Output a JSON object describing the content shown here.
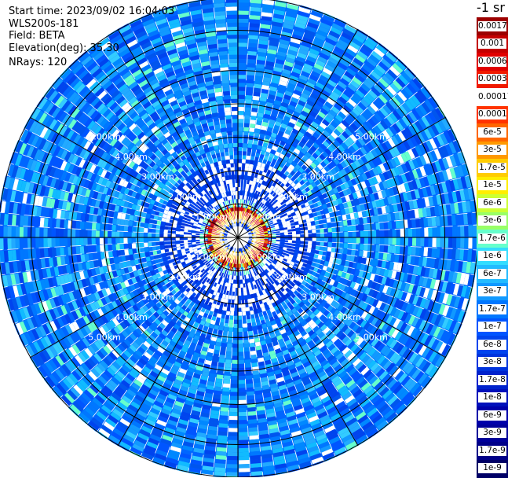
{
  "info": {
    "start_time": "Start time: 2023/09/02 16:04:03",
    "instrument": "WLS200s-181",
    "field": "Field: BETA",
    "elevation": "Elevation(deg): 35.30",
    "nrays": "NRays: 120"
  },
  "colorbar": {
    "unit_label": "-1 sr",
    "labels": [
      "0.0017",
      "0.001",
      "0.0006",
      "0.0003",
      "0.00017",
      "0.0001",
      "6e-5",
      "3e-5",
      "1.7e-5",
      "1e-5",
      "6e-6",
      "3e-6",
      "1.7e-6",
      "1e-6",
      "6e-7",
      "3e-7",
      "1.7e-7",
      "1e-7",
      "6e-8",
      "3e-8",
      "1.7e-8",
      "1e-8",
      "6e-9",
      "3e-9",
      "1.7e-9",
      "1e-9"
    ],
    "colors": [
      "#9c0000",
      "#c40000",
      "#e00000",
      "#f01a00",
      "#ffffff",
      "#ff3300",
      "#ff6600",
      "#ff9900",
      "#ffcc00",
      "#ffee00",
      "#ccff33",
      "#99ff66",
      "#66ffcc",
      "#33ddff",
      "#22bbff",
      "#1199ff",
      "#0077ff",
      "#0055ff",
      "#0044ee",
      "#0033dd",
      "#0022cc",
      "#0011bb",
      "#0000aa",
      "#000099",
      "#000088",
      "#000066"
    ]
  },
  "chart_data": {
    "type": "heatmap",
    "projection": "polar (PPI scan)",
    "field": "BETA",
    "n_rays": 120,
    "elevation_deg": 35.3,
    "range_ring_labels": [
      "1.00km",
      "2.00km",
      "3.00km",
      "4.00km",
      "5.00km"
    ],
    "range_rings_km": [
      1.0,
      2.0,
      3.0,
      4.0,
      5.0
    ],
    "max_range_km": 7.2,
    "grid_angle_step_deg": 30,
    "color_scale": "log",
    "value_range": [
      1e-09,
      0.0017
    ],
    "high_beta_ring_km": [
      0.5,
      0.85
    ],
    "background_level": "1e-8 to 1e-7"
  }
}
